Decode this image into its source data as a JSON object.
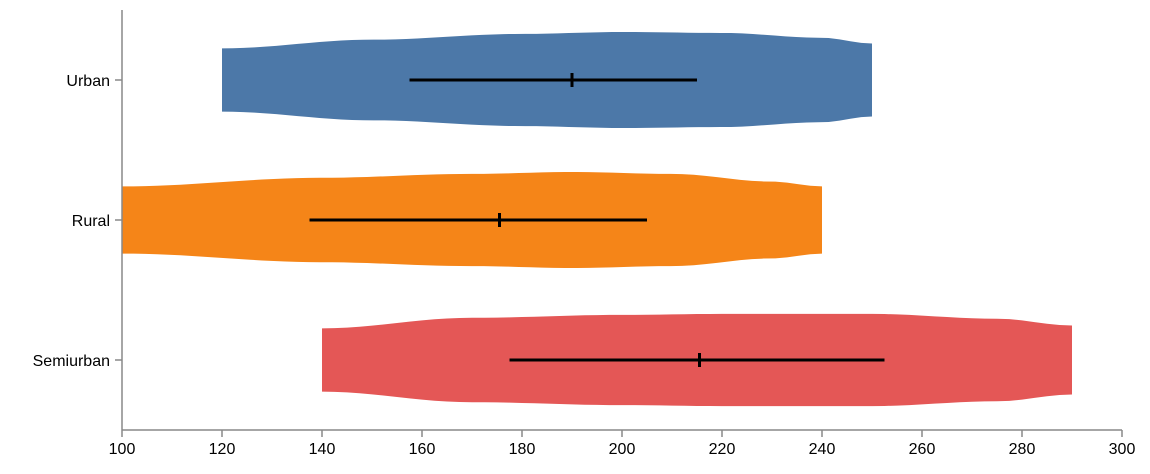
{
  "chart_data": {
    "type": "violin",
    "orientation": "horizontal",
    "title": "",
    "xlabel": "",
    "ylabel": "",
    "xlim": [
      100,
      300
    ],
    "x_ticks": [
      100,
      120,
      140,
      160,
      180,
      200,
      220,
      240,
      260,
      280,
      300
    ],
    "grid": false,
    "legend": "none",
    "categories": [
      "Urban",
      "Rural",
      "Semiurban"
    ],
    "series": [
      {
        "category": "Urban",
        "color": "#4c78a8",
        "min": 120,
        "max": 250,
        "center": 190,
        "interval": [
          157.5,
          215
        ],
        "density": [
          [
            120,
            0.33
          ],
          [
            150,
            0.42
          ],
          [
            180,
            0.48
          ],
          [
            200,
            0.5
          ],
          [
            220,
            0.49
          ],
          [
            240,
            0.44
          ],
          [
            250,
            0.38
          ]
        ]
      },
      {
        "category": "Rural",
        "color": "#f58518",
        "min": 100,
        "max": 240,
        "center": 175.5,
        "interval": [
          137.5,
          205
        ],
        "density": [
          [
            100,
            0.35
          ],
          [
            140,
            0.44
          ],
          [
            170,
            0.48
          ],
          [
            190,
            0.5
          ],
          [
            210,
            0.48
          ],
          [
            230,
            0.4
          ],
          [
            240,
            0.35
          ]
        ]
      },
      {
        "category": "Semiurban",
        "color": "#e45756",
        "min": 140,
        "max": 290,
        "center": 215.5,
        "interval": [
          177.5,
          252.5
        ],
        "density": [
          [
            140,
            0.33
          ],
          [
            170,
            0.44
          ],
          [
            200,
            0.47
          ],
          [
            220,
            0.48
          ],
          [
            250,
            0.48
          ],
          [
            275,
            0.43
          ],
          [
            290,
            0.36
          ]
        ]
      }
    ]
  }
}
